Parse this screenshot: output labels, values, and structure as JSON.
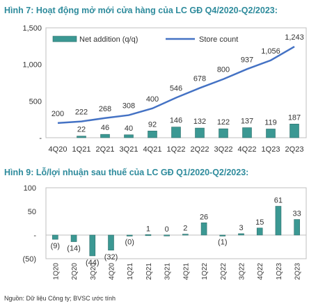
{
  "titles": {
    "chart1": "Hình 7: Hoạt động mở mới cửa hàng của LC GĐ Q4/2020-Q2/2023:",
    "chart2": "Hình 9: Lỗ/lợi nhuận sau thuế của LC GĐ Q1/2020-Q2/2023:"
  },
  "source": "Nguồn: Dữ liệu Công ty; BVSC ước tính",
  "colors": {
    "bar": "#3b9893",
    "line": "#4472c4",
    "bar_border": "#2f6f6b"
  },
  "chart_data": [
    {
      "type": "bar+line",
      "categories": [
        "4Q20",
        "1Q21",
        "2Q21",
        "3Q21",
        "4Q21",
        "1Q22",
        "2Q22",
        "3Q22",
        "4Q22",
        "1Q23",
        "2Q23"
      ],
      "series": [
        {
          "name": "Net addition (q/q)",
          "type": "bar",
          "values": [
            null,
            22,
            46,
            40,
            92,
            146,
            132,
            122,
            137,
            119,
            187
          ],
          "labels": [
            "",
            "22",
            "46",
            "40",
            "92",
            "146",
            "132",
            "122",
            "137",
            "119",
            "187"
          ]
        },
        {
          "name": "Store count",
          "type": "line",
          "values": [
            200,
            222,
            268,
            308,
            400,
            546,
            678,
            800,
            937,
            1056,
            1243
          ],
          "labels": [
            "200",
            "222",
            "268",
            "308",
            "400",
            "546",
            "678",
            "800",
            "937",
            "1,056",
            "1,243"
          ]
        }
      ],
      "yticks": [
        0,
        500,
        1000,
        1500
      ],
      "ytick_labels": [
        "-",
        "500",
        "1,000",
        "1,500"
      ],
      "ylim": [
        0,
        1500
      ],
      "legend_position": "top"
    },
    {
      "type": "bar",
      "categories": [
        "1Q20",
        "2Q20",
        "3Q20",
        "4Q20",
        "1Q21",
        "2Q21",
        "3Q21",
        "4Q21",
        "1Q22",
        "2Q22",
        "3Q22",
        "4Q22",
        "1Q23",
        "2Q23"
      ],
      "values": [
        -9,
        -14,
        -44,
        -32,
        -0.4,
        1,
        0.3,
        2,
        26,
        -1,
        3,
        15,
        61,
        33
      ],
      "labels": [
        "(9)",
        "(14)",
        "(44)",
        "(32)",
        "(0)",
        "1",
        "0",
        "2",
        "26",
        "(1)",
        "3",
        "15",
        "61",
        "33"
      ],
      "yticks": [
        -50,
        0,
        50,
        100
      ],
      "ytick_labels": [
        "(50)",
        "-",
        "50",
        "100"
      ],
      "ylim": [
        -50,
        100
      ]
    }
  ]
}
